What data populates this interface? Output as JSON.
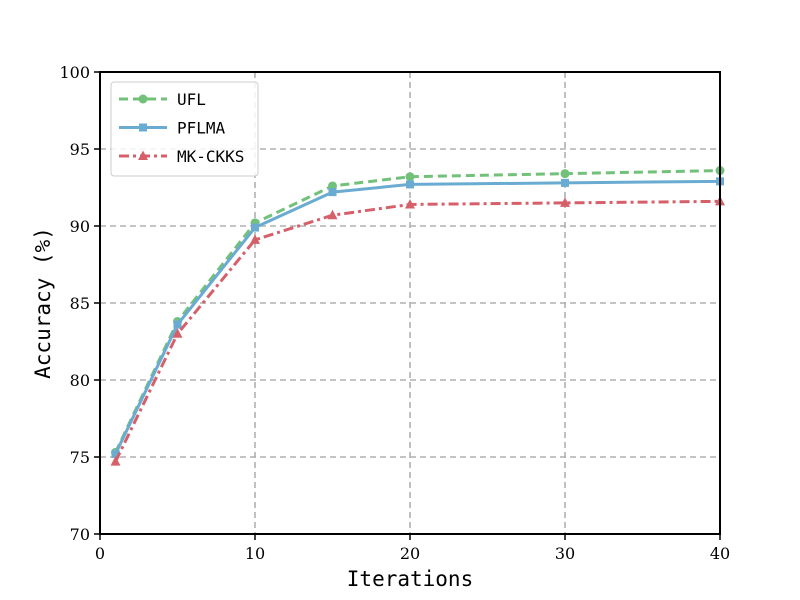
{
  "chart_data": {
    "type": "line",
    "title": "",
    "xlabel": "Iterations",
    "ylabel": "Accuracy (%)",
    "xlim": [
      0,
      40
    ],
    "ylim": [
      70,
      100
    ],
    "xticks": [
      0,
      10,
      20,
      30,
      40
    ],
    "yticks": [
      70,
      75,
      80,
      85,
      90,
      95,
      100
    ],
    "grid": true,
    "legend_position": "top-left",
    "x": [
      1,
      5,
      10,
      15,
      20,
      30,
      40
    ],
    "series": [
      {
        "name": "UFL",
        "values": [
          75.3,
          83.8,
          90.2,
          92.6,
          93.2,
          93.4,
          93.6
        ],
        "color": "#72c17a",
        "line_style": "dashed",
        "marker": "circle"
      },
      {
        "name": "PFLMA",
        "values": [
          75.2,
          83.6,
          89.9,
          92.2,
          92.7,
          92.8,
          92.9
        ],
        "color": "#6aabd2",
        "line_style": "solid",
        "marker": "square"
      },
      {
        "name": "MK-CKKS",
        "values": [
          74.7,
          83.0,
          89.1,
          90.7,
          91.4,
          91.5,
          91.6
        ],
        "color": "#d6606a",
        "line_style": "dash-dot",
        "marker": "triangle"
      }
    ]
  }
}
